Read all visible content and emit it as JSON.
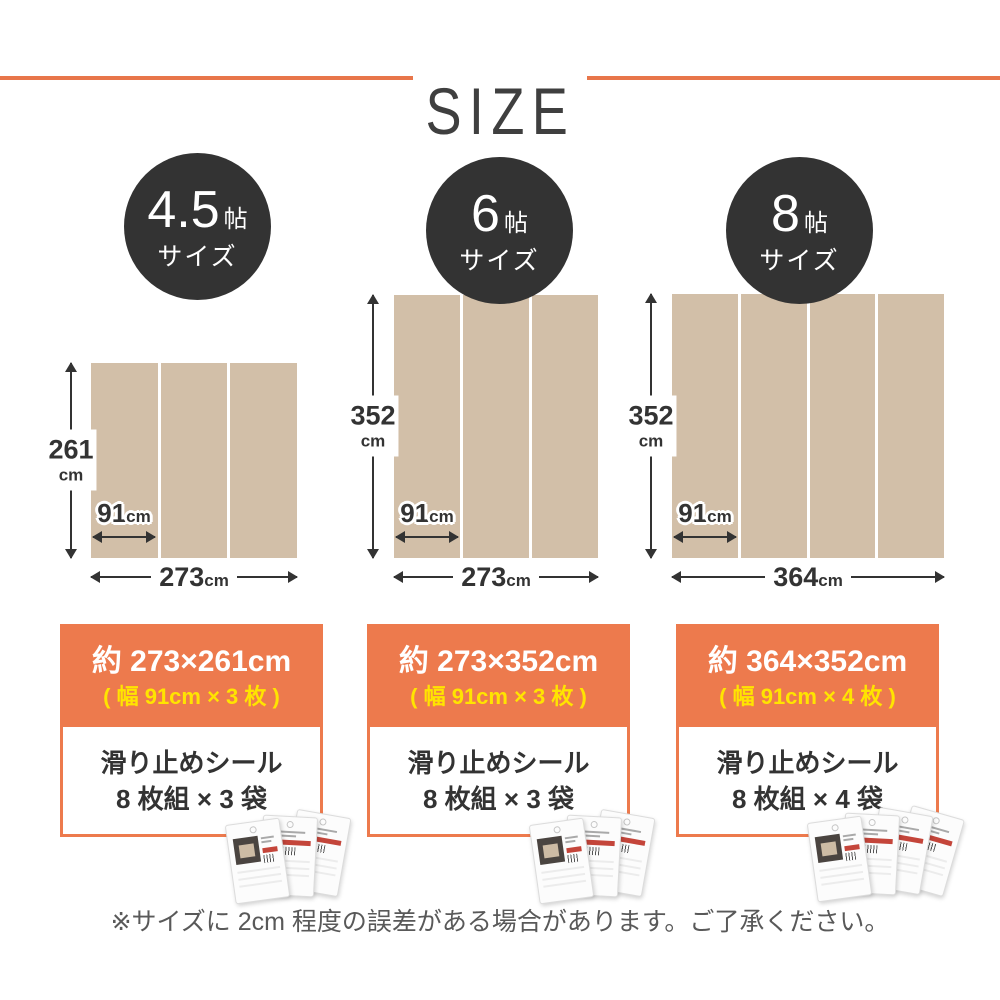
{
  "header": {
    "title": "SIZE"
  },
  "accent_colors": {
    "orange": "#ed7a4d",
    "rule_orange": "#e8764a",
    "yellow": "#ffe400",
    "beige": "#d2bfa8",
    "badge_bg": "#333333"
  },
  "columns": [
    {
      "badge": {
        "value": "4.5",
        "unit": "帖",
        "label": "サイズ"
      },
      "diagram": {
        "panel_count": 3,
        "height_value": "261",
        "height_unit": "cm",
        "panel_width_value": "91",
        "panel_width_unit": "cm",
        "total_width_value": "273",
        "total_width_unit": "cm"
      },
      "spec": {
        "size_text": "約 273×261cm",
        "width_text": "( 幅 91cm × 3 枚 )",
        "product_text": "滑り止めシール",
        "quantity_text": "8 枚組 × 3 袋"
      },
      "bag_count": 3
    },
    {
      "badge": {
        "value": "6",
        "unit": "帖",
        "label": "サイズ"
      },
      "diagram": {
        "panel_count": 3,
        "height_value": "352",
        "height_unit": "cm",
        "panel_width_value": "91",
        "panel_width_unit": "cm",
        "total_width_value": "273",
        "total_width_unit": "cm"
      },
      "spec": {
        "size_text": "約 273×352cm",
        "width_text": "( 幅 91cm × 3 枚 )",
        "product_text": "滑り止めシール",
        "quantity_text": "8 枚組 × 3 袋"
      },
      "bag_count": 3
    },
    {
      "badge": {
        "value": "8",
        "unit": "帖",
        "label": "サイズ"
      },
      "diagram": {
        "panel_count": 4,
        "height_value": "352",
        "height_unit": "cm",
        "panel_width_value": "91",
        "panel_width_unit": "cm",
        "total_width_value": "364",
        "total_width_unit": "cm"
      },
      "spec": {
        "size_text": "約 364×352cm",
        "width_text": "( 幅 91cm × 4 枚 )",
        "product_text": "滑り止めシール",
        "quantity_text": "8 枚組 × 4 袋"
      },
      "bag_count": 4
    }
  ],
  "footer": {
    "note": "※サイズに 2cm 程度の誤差がある場合があります。ご了承ください。"
  }
}
